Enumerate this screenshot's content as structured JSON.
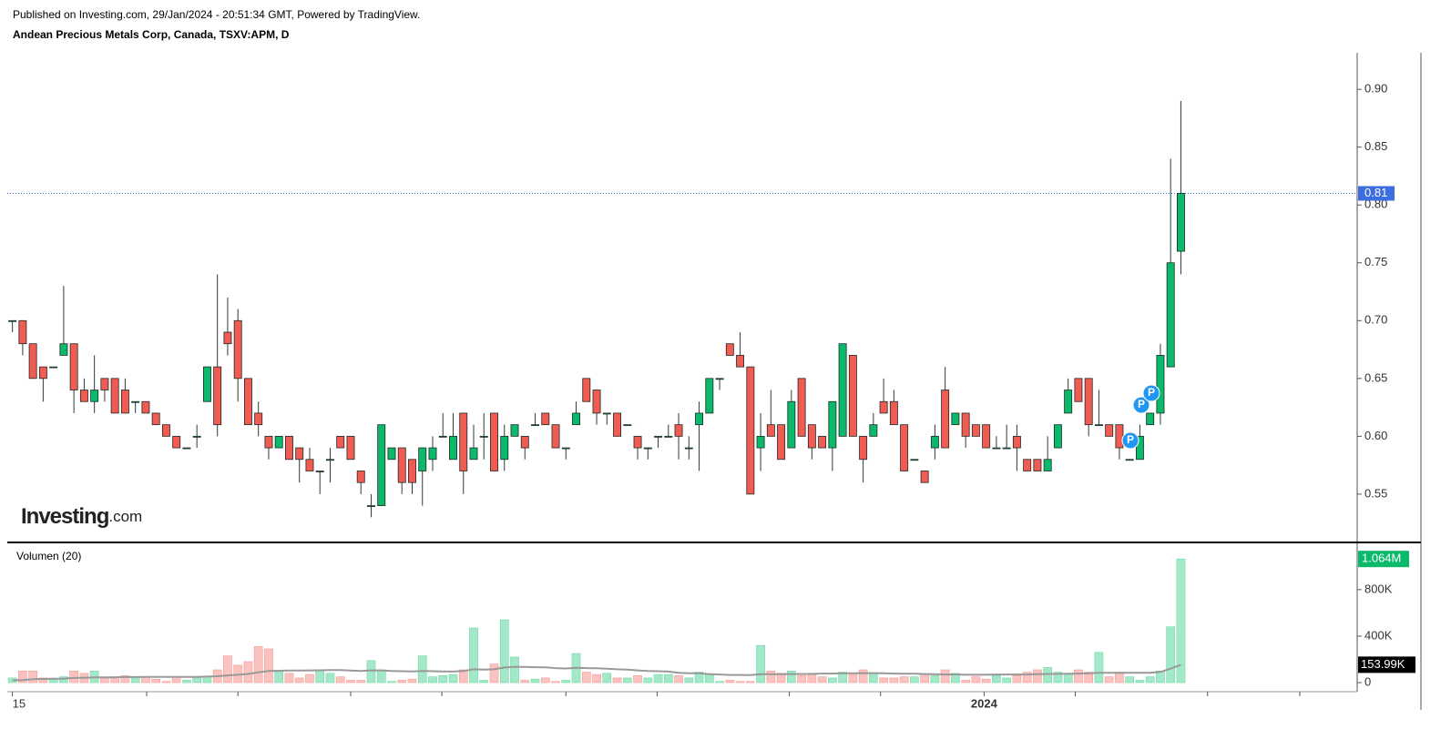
{
  "header": {
    "published": "Published on Investing.com, 29/Jan/2024 - 20:51:34 GMT, Powered by TradingView.",
    "title": "Andean Precious Metals Corp, Canada, TSXV:APM, D"
  },
  "logo": {
    "brand": "Investing",
    "suffix": ".com"
  },
  "chart_data": {
    "type": "candlestick",
    "up_color": "#0bb96a",
    "down_color": "#f15c52",
    "wick_color": "#2d3b36",
    "xlim": [
      -0.5,
      131.2
    ],
    "xticks": [
      {
        "value": 0,
        "label": "15"
      },
      {
        "value": 13.1,
        "label": null
      },
      {
        "value": 22,
        "label": null
      },
      {
        "value": 33,
        "label": null
      },
      {
        "value": 41.9,
        "label": null
      },
      {
        "value": 54,
        "label": null
      },
      {
        "value": 62.9,
        "label": null
      },
      {
        "value": 75.8,
        "label": null
      },
      {
        "value": 84.7,
        "label": null
      },
      {
        "value": 94.8,
        "label": "2024"
      },
      {
        "value": 103.7,
        "label": null
      },
      {
        "value": 116.6,
        "label": null
      },
      {
        "value": 125.6,
        "label": null
      }
    ],
    "open": [
      0.7,
      0.7,
      0.68,
      0.66,
      0.66,
      0.67,
      0.68,
      0.64,
      0.63,
      0.65,
      0.65,
      0.64,
      0.63,
      0.63,
      0.62,
      0.61,
      0.6,
      0.59,
      0.6,
      0.63,
      0.66,
      0.69,
      0.7,
      0.65,
      0.62,
      0.6,
      0.59,
      0.6,
      0.59,
      0.58,
      0.57,
      0.58,
      0.6,
      0.6,
      0.57,
      0.54,
      0.54,
      0.58,
      0.59,
      0.58,
      0.57,
      0.58,
      0.6,
      0.58,
      0.62,
      0.58,
      0.6,
      0.62,
      0.58,
      0.6,
      0.6,
      0.61,
      0.62,
      0.61,
      0.59,
      0.61,
      0.65,
      0.64,
      0.62,
      0.62,
      0.61,
      0.6,
      0.59,
      0.6,
      0.6,
      0.61,
      0.59,
      0.61,
      0.62,
      0.65,
      0.68,
      0.67,
      0.66,
      0.59,
      0.61,
      0.61,
      0.59,
      0.65,
      0.61,
      0.6,
      0.59,
      0.6,
      0.67,
      0.6,
      0.6,
      0.63,
      0.63,
      0.61,
      0.58,
      0.57,
      0.59,
      0.64,
      0.61,
      0.62,
      0.61,
      0.61,
      0.59,
      0.59,
      0.6,
      0.58,
      0.58,
      0.57,
      0.59,
      0.62,
      0.65,
      0.65,
      0.61,
      0.61,
      0.61,
      0.58,
      0.58,
      0.61,
      0.62,
      0.66,
      0.76
    ],
    "high": [
      0.7,
      0.7,
      0.68,
      0.66,
      0.66,
      0.73,
      0.68,
      0.65,
      0.67,
      0.65,
      0.65,
      0.65,
      0.63,
      0.63,
      0.62,
      0.61,
      0.6,
      0.59,
      0.61,
      0.66,
      0.74,
      0.72,
      0.71,
      0.65,
      0.63,
      0.6,
      0.6,
      0.6,
      0.59,
      0.59,
      0.57,
      0.59,
      0.6,
      0.6,
      0.57,
      0.55,
      0.61,
      0.59,
      0.59,
      0.58,
      0.59,
      0.6,
      0.62,
      0.62,
      0.62,
      0.61,
      0.62,
      0.62,
      0.61,
      0.61,
      0.6,
      0.62,
      0.62,
      0.61,
      0.59,
      0.63,
      0.65,
      0.64,
      0.62,
      0.62,
      0.61,
      0.6,
      0.59,
      0.6,
      0.61,
      0.62,
      0.6,
      0.63,
      0.65,
      0.65,
      0.68,
      0.69,
      0.66,
      0.62,
      0.64,
      0.61,
      0.64,
      0.65,
      0.61,
      0.6,
      0.63,
      0.68,
      0.67,
      0.6,
      0.62,
      0.65,
      0.64,
      0.61,
      0.58,
      0.57,
      0.61,
      0.66,
      0.62,
      0.62,
      0.61,
      0.61,
      0.6,
      0.61,
      0.61,
      0.58,
      0.58,
      0.6,
      0.61,
      0.65,
      0.65,
      0.65,
      0.64,
      0.61,
      0.61,
      0.58,
      0.61,
      0.62,
      0.68,
      0.84,
      0.89
    ],
    "low": [
      0.69,
      0.67,
      0.65,
      0.63,
      0.66,
      0.67,
      0.62,
      0.63,
      0.62,
      0.63,
      0.62,
      0.62,
      0.62,
      0.62,
      0.61,
      0.6,
      0.59,
      0.59,
      0.59,
      0.63,
      0.6,
      0.67,
      0.63,
      0.61,
      0.6,
      0.58,
      0.59,
      0.58,
      0.56,
      0.57,
      0.55,
      0.56,
      0.59,
      0.58,
      0.55,
      0.53,
      0.54,
      0.58,
      0.55,
      0.55,
      0.54,
      0.57,
      0.6,
      0.58,
      0.55,
      0.58,
      0.58,
      0.57,
      0.57,
      0.6,
      0.58,
      0.61,
      0.61,
      0.59,
      0.58,
      0.61,
      0.63,
      0.61,
      0.61,
      0.6,
      0.61,
      0.58,
      0.58,
      0.59,
      0.6,
      0.58,
      0.58,
      0.57,
      0.62,
      0.64,
      0.67,
      0.66,
      0.55,
      0.57,
      0.6,
      0.58,
      0.59,
      0.6,
      0.58,
      0.59,
      0.57,
      0.6,
      0.6,
      0.56,
      0.6,
      0.62,
      0.61,
      0.57,
      0.58,
      0.56,
      0.58,
      0.59,
      0.61,
      0.59,
      0.6,
      0.59,
      0.59,
      0.59,
      0.57,
      0.57,
      0.57,
      0.57,
      0.59,
      0.62,
      0.63,
      0.6,
      0.61,
      0.6,
      0.58,
      0.58,
      0.58,
      0.61,
      0.61,
      0.66,
      0.74
    ],
    "close": [
      0.7,
      0.68,
      0.65,
      0.65,
      0.66,
      0.68,
      0.64,
      0.63,
      0.64,
      0.64,
      0.62,
      0.62,
      0.63,
      0.62,
      0.61,
      0.6,
      0.59,
      0.59,
      0.6,
      0.66,
      0.61,
      0.68,
      0.65,
      0.61,
      0.61,
      0.59,
      0.6,
      0.58,
      0.58,
      0.57,
      0.57,
      0.58,
      0.59,
      0.58,
      0.56,
      0.54,
      0.61,
      0.59,
      0.56,
      0.56,
      0.59,
      0.59,
      0.6,
      0.6,
      0.57,
      0.59,
      0.6,
      0.57,
      0.6,
      0.61,
      0.59,
      0.61,
      0.61,
      0.59,
      0.59,
      0.62,
      0.63,
      0.62,
      0.62,
      0.6,
      0.61,
      0.59,
      0.59,
      0.6,
      0.6,
      0.6,
      0.59,
      0.62,
      0.65,
      0.65,
      0.67,
      0.66,
      0.55,
      0.6,
      0.6,
      0.58,
      0.63,
      0.6,
      0.59,
      0.59,
      0.63,
      0.68,
      0.6,
      0.58,
      0.61,
      0.62,
      0.61,
      0.57,
      0.58,
      0.56,
      0.6,
      0.59,
      0.62,
      0.6,
      0.6,
      0.59,
      0.59,
      0.59,
      0.59,
      0.57,
      0.57,
      0.58,
      0.61,
      0.64,
      0.63,
      0.61,
      0.61,
      0.6,
      0.59,
      0.58,
      0.6,
      0.62,
      0.67,
      0.75,
      0.81
    ],
    "ylim": [
      0.509,
      0.93
    ],
    "yticks": [
      0.55,
      {
        "value": 0.6,
        "label": "0.60"
      },
      0.65,
      {
        "value": 0.7,
        "label": "0.70"
      },
      0.75,
      {
        "value": 0.8,
        "label": "0.80"
      },
      0.85,
      {
        "value": 0.9,
        "label": "0.90"
      }
    ],
    "last_price": 0.81,
    "last_price_color": "#3d6ee0",
    "event_labels": [
      "P",
      "P",
      "P"
    ],
    "volume": {
      "title": "Volumen (20)",
      "up_color": "#a3e9c9",
      "down_color": "#fbc3c0",
      "ma_color": "#999999",
      "values": [
        40000,
        100000,
        100000,
        40000,
        30000,
        50000,
        100000,
        80000,
        100000,
        40000,
        50000,
        60000,
        40000,
        50000,
        30000,
        10000,
        50000,
        20000,
        40000,
        50000,
        110000,
        230000,
        150000,
        180000,
        310000,
        290000,
        90000,
        80000,
        40000,
        70000,
        100000,
        80000,
        50000,
        20000,
        20000,
        190000,
        110000,
        10000,
        20000,
        30000,
        230000,
        50000,
        60000,
        70000,
        110000,
        470000,
        20000,
        160000,
        540000,
        220000,
        20000,
        30000,
        40000,
        10000,
        20000,
        250000,
        90000,
        70000,
        80000,
        40000,
        40000,
        60000,
        40000,
        70000,
        70000,
        60000,
        40000,
        90000,
        70000,
        10000,
        20000,
        10000,
        10000,
        320000,
        100000,
        80000,
        100000,
        60000,
        70000,
        50000,
        40000,
        90000,
        70000,
        110000,
        80000,
        40000,
        40000,
        50000,
        50000,
        70000,
        60000,
        110000,
        80000,
        20000,
        50000,
        30000,
        60000,
        40000,
        60000,
        90000,
        110000,
        130000,
        90000,
        80000,
        110000,
        90000,
        260000,
        50000,
        90000,
        50000,
        20000,
        50000,
        100000,
        480000,
        1064000
      ],
      "ma": [
        20000,
        22000,
        30000,
        32000,
        33000,
        35000,
        40000,
        42000,
        45000,
        45000,
        46000,
        48000,
        48000,
        49000,
        50000,
        50000,
        50000,
        50000,
        50000,
        52000,
        55000,
        62000,
        68000,
        75000,
        88000,
        100000,
        102000,
        104000,
        104000,
        105000,
        106000,
        108000,
        108000,
        104000,
        100000,
        105000,
        105000,
        100000,
        98000,
        96000,
        100000,
        98000,
        96000,
        95000,
        100000,
        115000,
        112000,
        115000,
        130000,
        135000,
        135000,
        133000,
        132000,
        125000,
        122000,
        128000,
        125000,
        123000,
        120000,
        115000,
        112000,
        105000,
        100000,
        98000,
        95000,
        85000,
        80000,
        80000,
        72000,
        70000,
        66000,
        66000,
        65000,
        72000,
        72000,
        72000,
        74000,
        74000,
        75000,
        78000,
        78000,
        80000,
        80000,
        82000,
        82000,
        80000,
        78000,
        76000,
        76000,
        74000,
        72000,
        70000,
        70000,
        68000,
        68000,
        68000,
        70000,
        70000,
        70000,
        70000,
        72000,
        75000,
        75000,
        76000,
        78000,
        80000,
        85000,
        85000,
        85000,
        85000,
        85000,
        85000,
        92000,
        120000,
        153990
      ],
      "ylim": [
        -78000,
        1175000
      ],
      "yticks": [
        0,
        {
          "value": 400000,
          "label": "400K"
        },
        {
          "value": 800000,
          "label": "800K"
        }
      ],
      "last_label": {
        "value": 1064000,
        "label": "1.064M"
      },
      "ma_label": {
        "value": 153990,
        "label": "153.99K"
      }
    }
  }
}
